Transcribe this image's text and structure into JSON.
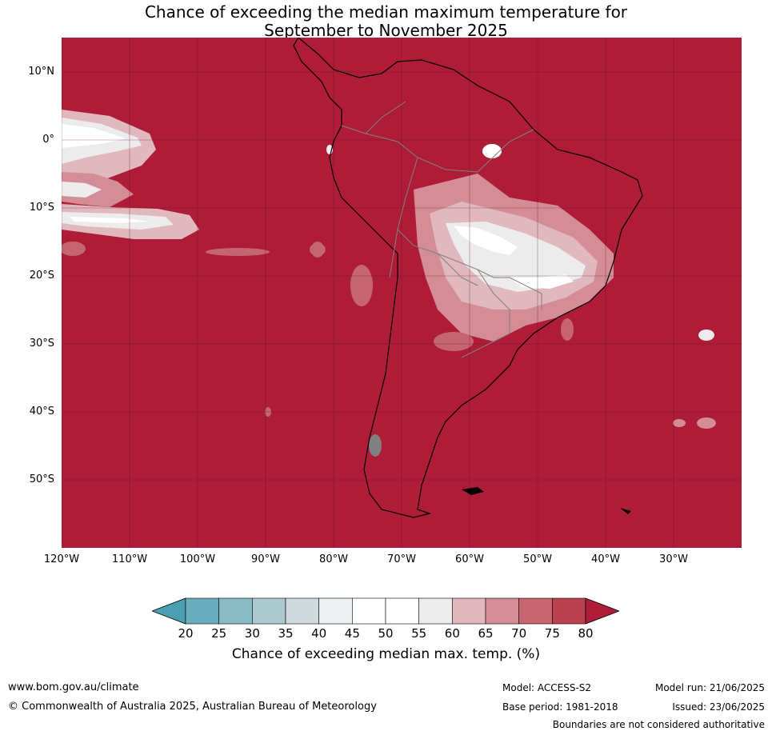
{
  "title": {
    "line1": "Chance of exceeding the median maximum temperature for",
    "line2": "September to November 2025"
  },
  "map": {
    "lat_labels": [
      "10°N",
      "0°",
      "10°S",
      "20°S",
      "30°S",
      "40°S",
      "50°S"
    ],
    "lon_labels": [
      "120°W",
      "110°W",
      "100°W",
      "90°W",
      "80°W",
      "70°W",
      "60°W",
      "50°W",
      "40°W",
      "30°W"
    ],
    "background_color": "#ae1c37"
  },
  "colorbar": {
    "ticks": [
      "20",
      "25",
      "30",
      "35",
      "40",
      "45",
      "50",
      "55",
      "60",
      "65",
      "70",
      "75",
      "80"
    ],
    "colors": [
      "#4aa0b0",
      "#6aaebe",
      "#8abac6",
      "#a9c9ce",
      "#d0dadd",
      "#ecf0f2",
      "#ffffff",
      "#ffffff",
      "#ececec",
      "#e0b8be",
      "#d48d96",
      "#c56570",
      "#b9404f",
      "#ae1c37"
    ],
    "label": "Chance of exceeding median max. temp. (%)"
  },
  "footer": {
    "website": "www.bom.gov.au/climate",
    "copyright": "© Commonwealth of Australia 2025, Australian Bureau of Meteorology",
    "model": "Model: ACCESS-S2",
    "base_period": "Base period: 1981-2018",
    "model_run": "Model run: 21/06/2025",
    "issued": "Issued: 23/06/2025",
    "disclaimer": "Boundaries are not considered authoritative"
  }
}
